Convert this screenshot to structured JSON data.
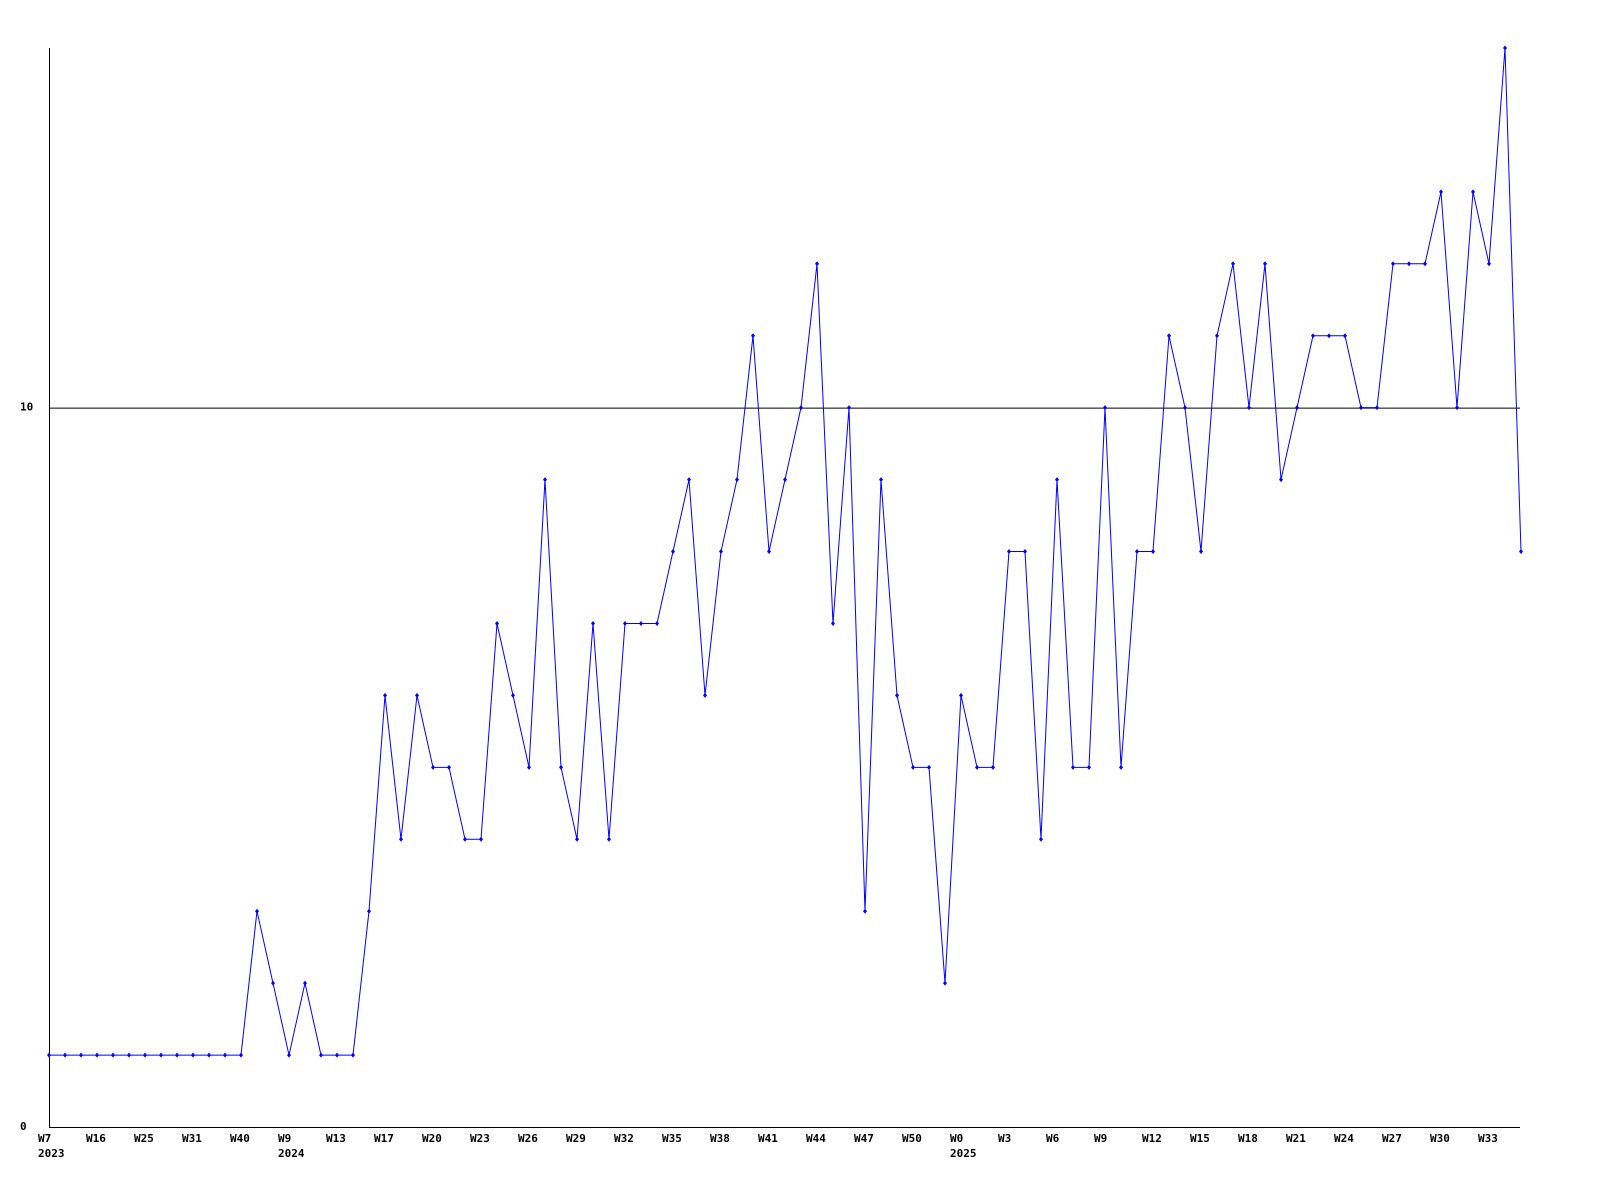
{
  "chart_data": {
    "type": "line",
    "categories": [
      "W7",
      null,
      null,
      "W16",
      null,
      null,
      "W25",
      null,
      null,
      "W31",
      null,
      null,
      "W40",
      null,
      null,
      "W9",
      null,
      null,
      "W13",
      null,
      null,
      "W17",
      null,
      null,
      "W20",
      null,
      null,
      "W23",
      null,
      null,
      "W26",
      null,
      null,
      "W29",
      null,
      null,
      "W32",
      null,
      null,
      "W35",
      null,
      null,
      "W38",
      null,
      null,
      "W41",
      null,
      null,
      "W44",
      null,
      null,
      "W47",
      null,
      null,
      "W50",
      null,
      null,
      "W0",
      null,
      null,
      "W3",
      null,
      null,
      "W6",
      null,
      null,
      "W9",
      null,
      null,
      "W12",
      null,
      null,
      "W15",
      null,
      null,
      "W18",
      null,
      null,
      "W21",
      null,
      null,
      "W24",
      null,
      null,
      "W27",
      null,
      null,
      "W30",
      null,
      null,
      "W33",
      null,
      null
    ],
    "years": [
      "2023",
      null,
      null,
      null,
      null,
      null,
      null,
      null,
      null,
      null,
      null,
      null,
      null,
      null,
      null,
      "2024",
      null,
      null,
      null,
      null,
      null,
      null,
      null,
      null,
      null,
      null,
      null,
      null,
      null,
      null,
      null,
      null,
      null,
      null,
      null,
      null,
      null,
      null,
      null,
      null,
      null,
      null,
      null,
      null,
      null,
      null,
      null,
      null,
      null,
      null,
      null,
      null,
      null,
      null,
      null,
      null,
      null,
      "2025",
      null,
      null,
      null,
      null,
      null,
      null,
      null,
      null,
      null,
      null,
      null,
      null,
      null,
      null,
      null,
      null,
      null,
      null,
      null,
      null,
      null,
      null,
      null,
      null,
      null,
      null,
      null,
      null,
      null,
      null,
      null,
      null,
      null,
      null,
      null,
      null
    ],
    "values": [
      1,
      1,
      1,
      1,
      1,
      1,
      1,
      1,
      1,
      1,
      1,
      1,
      1,
      3,
      2,
      1,
      2,
      1,
      1,
      1,
      3,
      6,
      4,
      6,
      5,
      5,
      4,
      4,
      7,
      6,
      5,
      9,
      5,
      4,
      7,
      4,
      7,
      7,
      7,
      8,
      9,
      6,
      8,
      9,
      11,
      8,
      9,
      10,
      12,
      7,
      10,
      3,
      9,
      6,
      5,
      5,
      2,
      6,
      5,
      5,
      8,
      8,
      4,
      9,
      5,
      5,
      10,
      5,
      8,
      8,
      11,
      10,
      8,
      11,
      12,
      10,
      12,
      9,
      10,
      11,
      11,
      11,
      10,
      10,
      12,
      12,
      12,
      13,
      10,
      13,
      12,
      15,
      8
    ],
    "color": "#0000ff",
    "ylim": [
      0,
      15
    ],
    "yticks": [
      0,
      10
    ],
    "grid": true
  }
}
